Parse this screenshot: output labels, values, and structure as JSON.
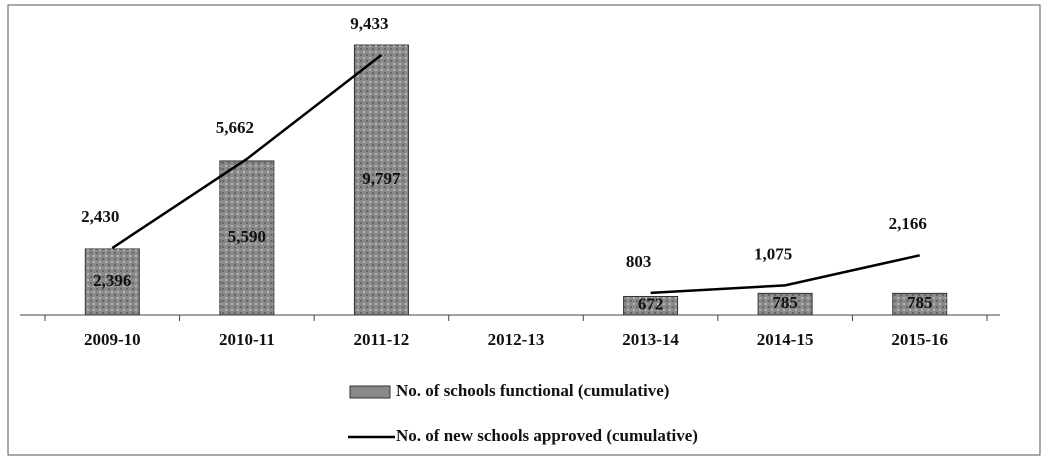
{
  "chart_data": {
    "type": "bar-line",
    "categories": [
      "2009-10",
      "2010-11",
      "2011-12",
      "2012-13",
      "2013-14",
      "2014-15",
      "2015-16"
    ],
    "series": [
      {
        "name": "No. of schools functional (cumulative)",
        "type": "bar",
        "color": "#8a8a8a",
        "values": [
          2396,
          5590,
          9797,
          null,
          672,
          785,
          785
        ],
        "value_labels": [
          "2,396",
          "5,590",
          "9,797",
          null,
          "672",
          "785",
          "785"
        ]
      },
      {
        "name": "No. of new schools approved (cumulative)",
        "type": "line",
        "color": "#000000",
        "values": [
          2430,
          5662,
          9433,
          null,
          803,
          1075,
          2166
        ],
        "value_labels": [
          "2,430",
          "5,662",
          "9,433",
          null,
          "803",
          "1,075",
          "2,166"
        ]
      }
    ],
    "legend": "bottom"
  }
}
